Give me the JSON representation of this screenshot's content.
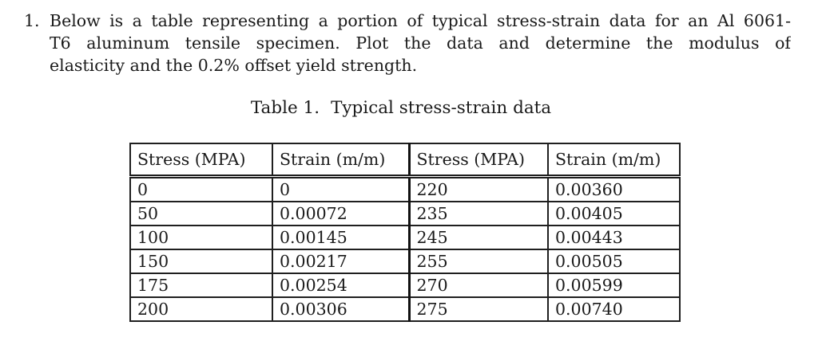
{
  "problem": {
    "number": "1.",
    "lines": [
      "Below is a table representing a portion of typical stress-strain data for an Al 6061-",
      "T6 aluminum tensile specimen.  Plot the data and determine the modulus of",
      "elasticity and the 0.2% offset yield strength."
    ]
  },
  "table": {
    "caption_label": "Table 1.",
    "caption_text": "Typical stress-strain data",
    "headers": [
      "Stress (MPA)",
      "Strain (m/m)",
      "Stress (MPA)",
      "Strain (m/m)"
    ],
    "rows": [
      [
        "0",
        "0",
        "220",
        "0.00360"
      ],
      [
        "50",
        "0.00072",
        "235",
        "0.00405"
      ],
      [
        "100",
        "0.00145",
        "245",
        "0.00443"
      ],
      [
        "150",
        "0.00217",
        "255",
        "0.00505"
      ],
      [
        "175",
        "0.00254",
        "270",
        "0.00599"
      ],
      [
        "200",
        "0.00306",
        "275",
        "0.00740"
      ]
    ]
  },
  "chart_data": {
    "type": "table",
    "title": "Table 1. Typical stress-strain data",
    "columns": [
      "Stress (MPA)",
      "Strain (m/m)",
      "Stress (MPA)",
      "Strain (m/m)"
    ],
    "stress_mpa": [
      0,
      50,
      100,
      150,
      175,
      200,
      220,
      235,
      245,
      255,
      270,
      275
    ],
    "strain_m_per_m": [
      0,
      0.00072,
      0.00145,
      0.00217,
      0.00254,
      0.00306,
      0.0036,
      0.00405,
      0.00443,
      0.00505,
      0.00599,
      0.0074
    ]
  },
  "colors": {
    "text": "#1a1a1a",
    "background": "#ffffff",
    "table_border": "#1f1f1f"
  }
}
